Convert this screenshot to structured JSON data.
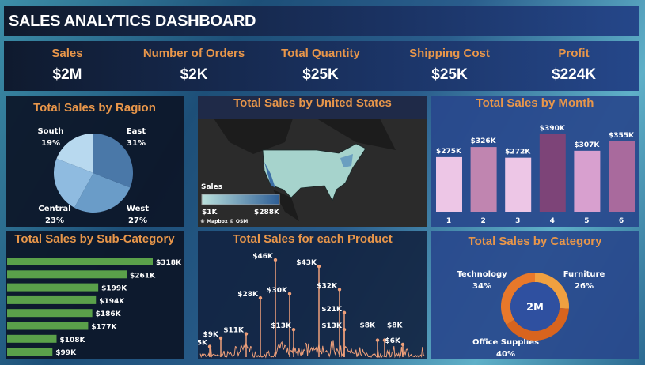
{
  "header": {
    "title": "SALES ANALYTICS DASHBOARD"
  },
  "kpis": [
    {
      "label": "Sales",
      "value": "$2M"
    },
    {
      "label": "Number of Orders",
      "value": "$2K"
    },
    {
      "label": "Total Quantity",
      "value": "$25K"
    },
    {
      "label": "Shipping Cost",
      "value": "$25K"
    },
    {
      "label": "Profit",
      "value": "$224K"
    }
  ],
  "chart_data": [
    {
      "type": "pie",
      "title": "Total Sales by Ragion",
      "slices": [
        {
          "name": "East",
          "pct": "31%",
          "value": 31,
          "color": "#4a78a8"
        },
        {
          "name": "West",
          "pct": "27%",
          "value": 27,
          "color": "#6a9cc8"
        },
        {
          "name": "Central",
          "pct": "23%",
          "value": 23,
          "color": "#8fbbe0"
        },
        {
          "name": "South",
          "pct": "19%",
          "value": 19,
          "color": "#b8d9ef"
        }
      ]
    },
    {
      "type": "map",
      "title": "Total Sales by United States",
      "legend_title": "Sales",
      "legend_min": "$1K",
      "legend_max": "$288K",
      "attribution": "© Mapbox © OSM",
      "color_range": [
        "#b9e0dc",
        "#2e5e96"
      ]
    },
    {
      "type": "bar",
      "title": "Total Sales by Month",
      "categories": [
        "1",
        "2",
        "3",
        "4",
        "5",
        "6"
      ],
      "values": [
        275,
        326,
        272,
        390,
        307,
        355
      ],
      "labels": [
        "$275K",
        "$326K",
        "$272K",
        "$390K",
        "$307K",
        "$355K"
      ],
      "colors": [
        "#edc6e6",
        "#c085b0",
        "#edc6e6",
        "#7d4478",
        "#d8a0cf",
        "#a96a9d"
      ]
    },
    {
      "type": "bar",
      "orientation": "horizontal",
      "title": "Total Sales by Sub-Category",
      "values": [
        318,
        261,
        199,
        194,
        186,
        177,
        108,
        99
      ],
      "labels": [
        "$318K",
        "$261K",
        "$199K",
        "$194K",
        "$186K",
        "$177K",
        "$108K",
        "$99K"
      ],
      "color": "#5aa04a"
    },
    {
      "type": "line",
      "title": "Total Sales for each Product",
      "color": "#f0a07a",
      "labeled_peaks": [
        {
          "label": "$5K",
          "value": 5
        },
        {
          "label": "$9K",
          "value": 9
        },
        {
          "label": "$11K",
          "value": 11
        },
        {
          "label": "$28K",
          "value": 28
        },
        {
          "label": "$46K",
          "value": 46
        },
        {
          "label": "$30K",
          "value": 30
        },
        {
          "label": "$13K",
          "value": 13
        },
        {
          "label": "$43K",
          "value": 43
        },
        {
          "label": "$32K",
          "value": 32
        },
        {
          "label": "$21K",
          "value": 21
        },
        {
          "label": "$13K",
          "value": 13
        },
        {
          "label": "$8K",
          "value": 8
        },
        {
          "label": "$8K",
          "value": 8
        },
        {
          "label": "$6K",
          "value": 6
        }
      ]
    },
    {
      "type": "pie",
      "donut": true,
      "title": "Total Sales by Category",
      "center_label": "2M",
      "slices": [
        {
          "name": "Furniture",
          "pct": "26%",
          "value": 26,
          "color": "#f0a040"
        },
        {
          "name": "Office Supplies",
          "pct": "40%",
          "value": 40,
          "color": "#d8641e"
        },
        {
          "name": "Technology",
          "pct": "34%",
          "value": 34,
          "color": "#e8782a"
        }
      ]
    }
  ]
}
